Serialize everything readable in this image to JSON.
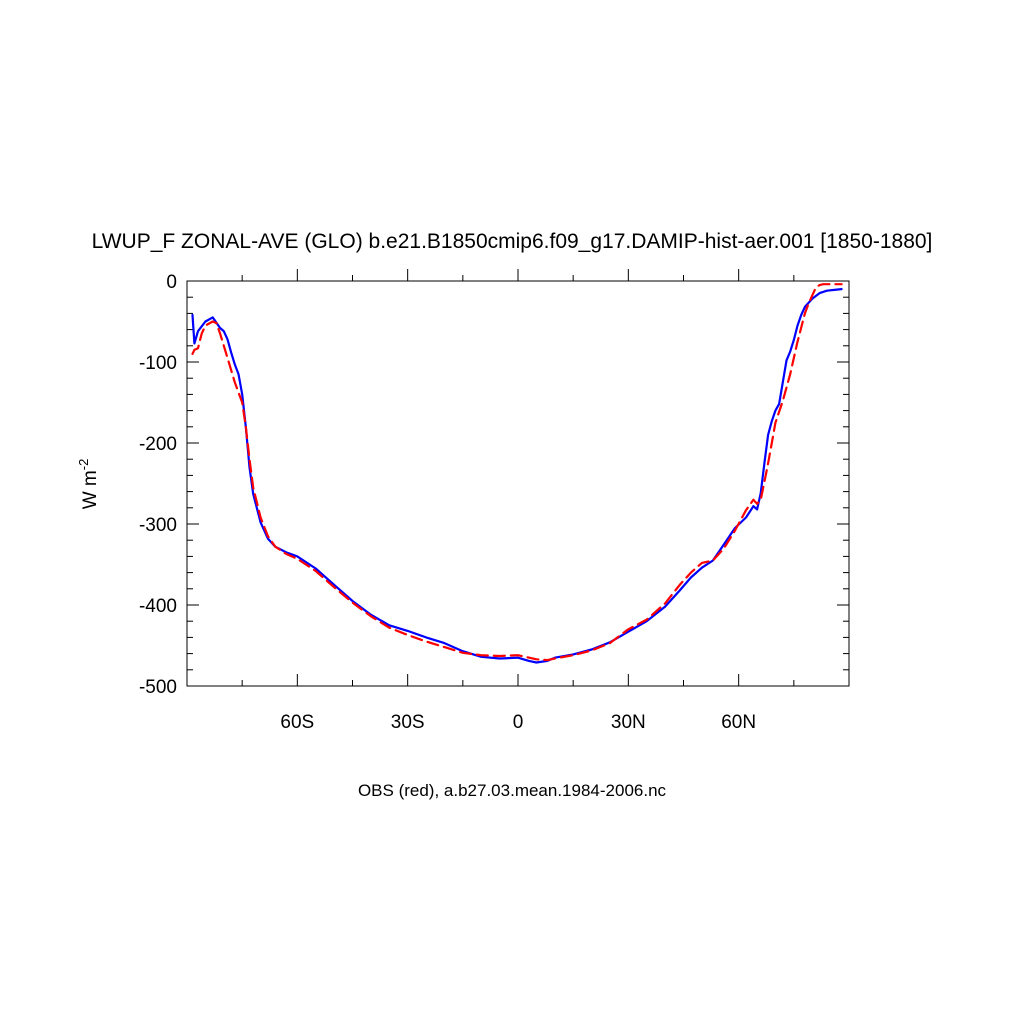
{
  "chart_data": {
    "type": "line",
    "title": "LWUP_F ZONAL-AVE (GLO) b.e21.B1850cmip6.f09_g17.DAMIP-hist-aer.001 [1850-1880]",
    "ylabel": "W m",
    "ylabel_sup": "-2",
    "caption": "OBS (red), a.b27.03.mean.1984-2006.nc",
    "xlim": [
      -90,
      90
    ],
    "ylim": [
      -500,
      0
    ],
    "x_ticks": [
      {
        "value": -60,
        "label": "60S"
      },
      {
        "value": -30,
        "label": "30S"
      },
      {
        "value": 0,
        "label": "0"
      },
      {
        "value": 30,
        "label": "30N"
      },
      {
        "value": 60,
        "label": "60N"
      }
    ],
    "y_ticks": [
      {
        "value": 0,
        "label": "0"
      },
      {
        "value": -100,
        "label": "-100"
      },
      {
        "value": -200,
        "label": "-200"
      },
      {
        "value": -300,
        "label": "-300"
      },
      {
        "value": -400,
        "label": "-400"
      },
      {
        "value": -500,
        "label": "-500"
      }
    ],
    "grid": false,
    "series": [
      {
        "color": "#0000ff",
        "dash": "solid",
        "points": [
          [
            -88.5,
            -42
          ],
          [
            -88,
            -77
          ],
          [
            -87,
            -62
          ],
          [
            -85,
            -50
          ],
          [
            -83,
            -45
          ],
          [
            -81,
            -58
          ],
          [
            -80,
            -62
          ],
          [
            -79,
            -72
          ],
          [
            -78,
            -88
          ],
          [
            -77,
            -103
          ],
          [
            -76,
            -115
          ],
          [
            -75,
            -140
          ],
          [
            -74,
            -180
          ],
          [
            -73,
            -230
          ],
          [
            -72,
            -263
          ],
          [
            -70,
            -298
          ],
          [
            -68,
            -318
          ],
          [
            -66,
            -328
          ],
          [
            -63,
            -335
          ],
          [
            -60,
            -340
          ],
          [
            -55,
            -355
          ],
          [
            -50,
            -375
          ],
          [
            -45,
            -395
          ],
          [
            -40,
            -412
          ],
          [
            -35,
            -425
          ],
          [
            -30,
            -432
          ],
          [
            -25,
            -440
          ],
          [
            -20,
            -447
          ],
          [
            -15,
            -457
          ],
          [
            -10,
            -464
          ],
          [
            -5,
            -466
          ],
          [
            0,
            -465
          ],
          [
            3,
            -469
          ],
          [
            5,
            -471
          ],
          [
            8,
            -469
          ],
          [
            10,
            -465
          ],
          [
            15,
            -461
          ],
          [
            20,
            -455
          ],
          [
            25,
            -446
          ],
          [
            30,
            -433
          ],
          [
            35,
            -420
          ],
          [
            40,
            -402
          ],
          [
            44,
            -382
          ],
          [
            47,
            -366
          ],
          [
            50,
            -354
          ],
          [
            53,
            -345
          ],
          [
            56,
            -325
          ],
          [
            59,
            -305
          ],
          [
            62,
            -292
          ],
          [
            63,
            -285
          ],
          [
            64,
            -278
          ],
          [
            65,
            -282
          ],
          [
            66,
            -262
          ],
          [
            67,
            -225
          ],
          [
            68,
            -190
          ],
          [
            69,
            -173
          ],
          [
            70,
            -160
          ],
          [
            71,
            -152
          ],
          [
            72,
            -125
          ],
          [
            73,
            -98
          ],
          [
            74,
            -87
          ],
          [
            75,
            -73
          ],
          [
            76,
            -55
          ],
          [
            77,
            -42
          ],
          [
            78,
            -32
          ],
          [
            79,
            -27
          ],
          [
            80,
            -22
          ],
          [
            82,
            -15
          ],
          [
            84,
            -12
          ],
          [
            86,
            -11
          ],
          [
            88,
            -10
          ]
        ]
      },
      {
        "color": "#ff0000",
        "dash": "dashed",
        "points": [
          [
            -88.5,
            -90
          ],
          [
            -88,
            -85
          ],
          [
            -87,
            -83
          ],
          [
            -86,
            -65
          ],
          [
            -85,
            -55
          ],
          [
            -83,
            -50
          ],
          [
            -82,
            -52
          ],
          [
            -81,
            -65
          ],
          [
            -79,
            -95
          ],
          [
            -77,
            -125
          ],
          [
            -75,
            -150
          ],
          [
            -74,
            -180
          ],
          [
            -73,
            -220
          ],
          [
            -72,
            -255
          ],
          [
            -70,
            -292
          ],
          [
            -68,
            -315
          ],
          [
            -66,
            -328
          ],
          [
            -63,
            -337
          ],
          [
            -60,
            -343
          ],
          [
            -55,
            -358
          ],
          [
            -50,
            -378
          ],
          [
            -45,
            -397
          ],
          [
            -40,
            -414
          ],
          [
            -35,
            -428
          ],
          [
            -30,
            -437
          ],
          [
            -25,
            -445
          ],
          [
            -20,
            -452
          ],
          [
            -15,
            -459
          ],
          [
            -10,
            -462
          ],
          [
            -5,
            -463
          ],
          [
            0,
            -462
          ],
          [
            5,
            -467
          ],
          [
            8,
            -468
          ],
          [
            10,
            -466
          ],
          [
            15,
            -462
          ],
          [
            20,
            -456
          ],
          [
            25,
            -447
          ],
          [
            30,
            -430
          ],
          [
            35,
            -418
          ],
          [
            40,
            -398
          ],
          [
            44,
            -375
          ],
          [
            47,
            -360
          ],
          [
            50,
            -348
          ],
          [
            53,
            -345
          ],
          [
            56,
            -330
          ],
          [
            59,
            -308
          ],
          [
            62,
            -283
          ],
          [
            64,
            -270
          ],
          [
            65,
            -275
          ],
          [
            66,
            -270
          ],
          [
            67,
            -248
          ],
          [
            68,
            -225
          ],
          [
            69,
            -200
          ],
          [
            70,
            -175
          ],
          [
            72,
            -148
          ],
          [
            74,
            -115
          ],
          [
            76,
            -75
          ],
          [
            78,
            -40
          ],
          [
            79,
            -28
          ],
          [
            80,
            -18
          ],
          [
            81,
            -8
          ],
          [
            82,
            -5
          ],
          [
            83,
            -4
          ],
          [
            88,
            -4
          ]
        ]
      }
    ]
  }
}
